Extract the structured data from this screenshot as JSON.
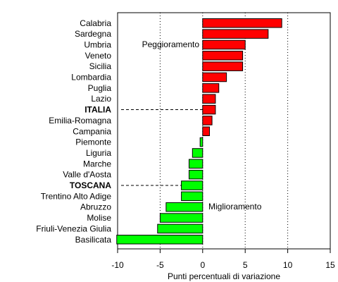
{
  "chart_data": {
    "type": "bar",
    "orientation": "horizontal",
    "title": "",
    "xlabel": "Punti percentuali di variazione",
    "ylabel": "",
    "xlim": [
      -10,
      15
    ],
    "xticks": [
      -10,
      -5,
      0,
      5,
      10,
      15
    ],
    "grid": "vertical dotted",
    "categories": [
      "Calabria",
      "Sardegna",
      "Umbria",
      "Veneto",
      "Sicilia",
      "Lombardia",
      "Puglia",
      "Lazio",
      "ITALIA",
      "Emilia-Romagna",
      "Campania",
      "Piemonte",
      "Liguria",
      "Marche",
      "Valle d'Aosta",
      "TOSCANA",
      "Trentino Alto Adige",
      "Abruzzo",
      "Molise",
      "Friuli-Venezia Giulia",
      "Basilicata"
    ],
    "values": [
      9.3,
      7.7,
      5.0,
      4.7,
      4.7,
      2.8,
      1.9,
      1.5,
      1.5,
      1.1,
      0.8,
      -0.3,
      -1.2,
      -1.6,
      -1.6,
      -2.5,
      -2.5,
      -4.3,
      -5.0,
      -5.3,
      -10.1
    ],
    "highlighted": [
      "ITALIA",
      "TOSCANA"
    ],
    "annotations": {
      "positive": "Peggioramento",
      "negative": "Miglioramento"
    },
    "colors": {
      "positive": "#ff0000",
      "negative": "#00ff00",
      "positive_label": "#8b0000",
      "negative_label": "#006400"
    }
  }
}
